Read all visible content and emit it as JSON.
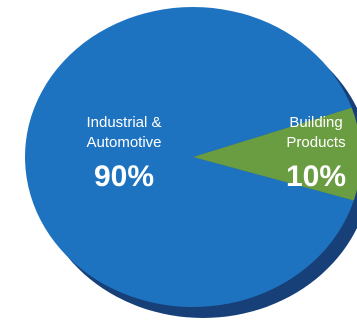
{
  "chart_data": {
    "type": "pie",
    "title": "",
    "legend": "none",
    "slices": [
      {
        "label_lines": [
          "Industrial &",
          "Automotive"
        ],
        "value": 90,
        "value_label": "90%",
        "color": "#1e73c0"
      },
      {
        "label_lines": [
          "Building",
          "Products"
        ],
        "value": 10,
        "value_label": "10%",
        "color": "#6a9c42"
      }
    ],
    "depth_color": "#173f78"
  }
}
